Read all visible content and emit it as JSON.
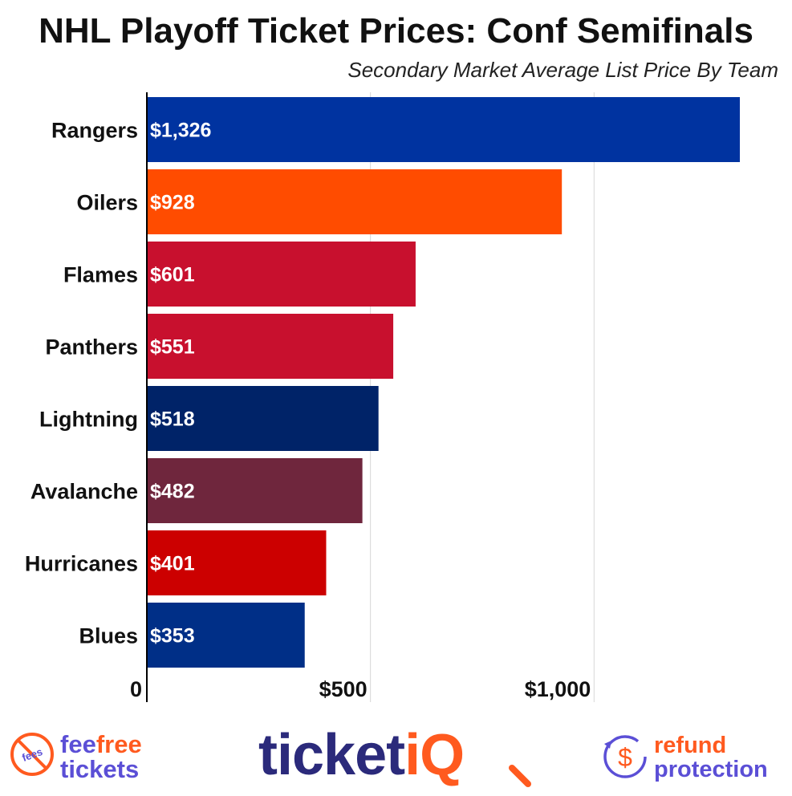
{
  "title": "NHL Playoff Ticket Prices: Conf Semifinals",
  "subtitle": "Secondary Market Average List Price By Team",
  "chart_data": {
    "type": "bar",
    "orientation": "horizontal",
    "categories": [
      "Rangers",
      "Oilers",
      "Flames",
      "Panthers",
      "Lightning",
      "Avalanche",
      "Hurricanes",
      "Blues"
    ],
    "values": [
      1326,
      928,
      601,
      551,
      518,
      482,
      401,
      353
    ],
    "value_labels": [
      "$1,326",
      "$928",
      "$601",
      "$551",
      "$518",
      "$482",
      "$401",
      "$353"
    ],
    "colors": [
      "#0033A0",
      "#FF4C00",
      "#C8102E",
      "#C8102E",
      "#002368",
      "#6F263D",
      "#CC0000",
      "#002F87"
    ],
    "xticks": [
      0,
      500,
      1000
    ],
    "xtick_labels": [
      "0",
      "$500",
      "$1,000"
    ],
    "xlim": [
      0,
      1340
    ],
    "grid": true
  },
  "footer": {
    "feefree": {
      "badge": "fees",
      "word1a": "fee",
      "word1b": "free",
      "word2": "tickets"
    },
    "brand": {
      "part1": "ticket",
      "part2": "iQ"
    },
    "refund": {
      "symbol": "$",
      "word1": "refund",
      "word2": "protection"
    },
    "colors": {
      "orange": "#FF5A1F",
      "purple": "#5B4FD6",
      "navy": "#2B2A7B"
    }
  }
}
